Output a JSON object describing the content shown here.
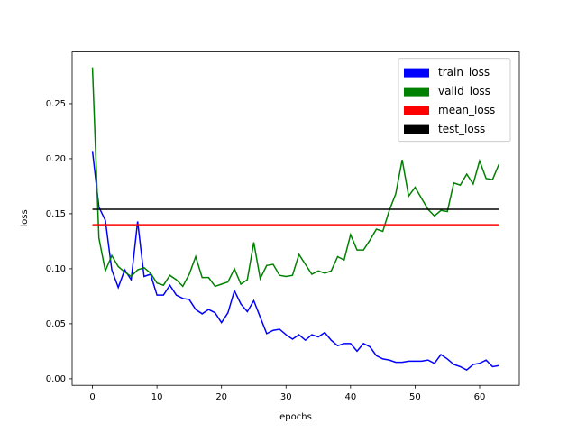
{
  "chart_data": {
    "type": "line",
    "xlabel": "epochs",
    "ylabel": "loss",
    "x": [
      0,
      1,
      2,
      3,
      4,
      5,
      6,
      7,
      8,
      9,
      10,
      11,
      12,
      13,
      14,
      15,
      16,
      17,
      18,
      19,
      20,
      21,
      22,
      23,
      24,
      25,
      26,
      27,
      28,
      29,
      30,
      31,
      32,
      33,
      34,
      35,
      36,
      37,
      38,
      39,
      40,
      41,
      42,
      43,
      44,
      45,
      46,
      47,
      48,
      49,
      50,
      51,
      52,
      53,
      54,
      55,
      56,
      57,
      58,
      59,
      60,
      61,
      62,
      63
    ],
    "series": [
      {
        "name": "train_loss",
        "color": "#0000ff",
        "values": [
          0.207,
          0.156,
          0.144,
          0.099,
          0.083,
          0.099,
          0.09,
          0.143,
          0.093,
          0.095,
          0.076,
          0.076,
          0.085,
          0.076,
          0.073,
          0.072,
          0.063,
          0.059,
          0.063,
          0.06,
          0.051,
          0.06,
          0.08,
          0.068,
          0.061,
          0.071,
          0.056,
          0.041,
          0.044,
          0.045,
          0.04,
          0.036,
          0.04,
          0.035,
          0.04,
          0.038,
          0.042,
          0.035,
          0.03,
          0.032,
          0.032,
          0.025,
          0.032,
          0.029,
          0.021,
          0.018,
          0.017,
          0.015,
          0.015,
          0.016,
          0.016,
          0.016,
          0.017,
          0.014,
          0.022,
          0.018,
          0.013,
          0.011,
          0.008,
          0.013,
          0.014,
          0.017,
          0.011,
          0.012
        ]
      },
      {
        "name": "valid_loss",
        "color": "#008000",
        "values": [
          0.283,
          0.128,
          0.098,
          0.112,
          0.102,
          0.097,
          0.093,
          0.099,
          0.101,
          0.096,
          0.087,
          0.085,
          0.094,
          0.09,
          0.084,
          0.095,
          0.111,
          0.092,
          0.092,
          0.084,
          0.086,
          0.088,
          0.1,
          0.086,
          0.09,
          0.124,
          0.091,
          0.103,
          0.104,
          0.094,
          0.093,
          0.094,
          0.113,
          0.104,
          0.095,
          0.098,
          0.096,
          0.098,
          0.111,
          0.108,
          0.131,
          0.117,
          0.117,
          0.126,
          0.136,
          0.134,
          0.153,
          0.168,
          0.199,
          0.166,
          0.174,
          0.164,
          0.154,
          0.148,
          0.153,
          0.152,
          0.178,
          0.176,
          0.186,
          0.177,
          0.198,
          0.182,
          0.181,
          0.195
        ]
      },
      {
        "name": "mean_loss",
        "color": "#ff0000",
        "x": [
          0,
          63
        ],
        "values": [
          0.14,
          0.14
        ]
      },
      {
        "name": "test_loss",
        "color": "#000000",
        "x": [
          0,
          63
        ],
        "values": [
          0.154,
          0.154
        ]
      }
    ],
    "xlim": [
      -3.15,
      66.15
    ],
    "ylim": [
      -0.006,
      0.297
    ],
    "xticks": [
      0,
      10,
      20,
      30,
      40,
      50,
      60
    ],
    "yticks": [
      {
        "value": 0,
        "label": "0.00"
      },
      0.05,
      {
        "value": 0.1,
        "label": "0.10"
      },
      0.15,
      {
        "value": 0.2,
        "label": "0.20"
      },
      0.25
    ],
    "legend": "upper right",
    "grid": false
  }
}
